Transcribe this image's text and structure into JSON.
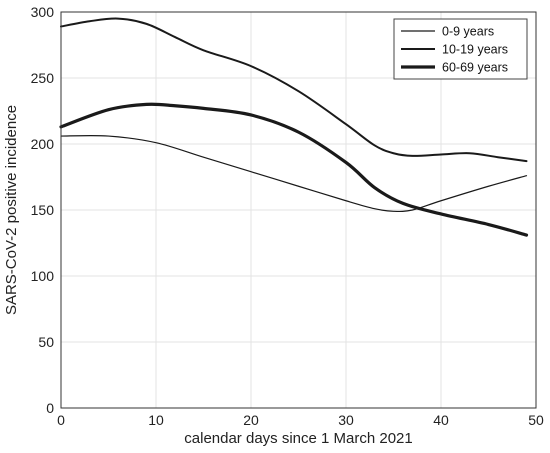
{
  "chart_data": {
    "type": "line",
    "xlabel": "calendar days since 1 March 2021",
    "ylabel": "SARS-CoV-2 positive incidence",
    "xlim": [
      0,
      50
    ],
    "ylim": [
      0,
      300
    ],
    "xticks": [
      0,
      10,
      20,
      30,
      40,
      50
    ],
    "yticks": [
      0,
      50,
      100,
      150,
      200,
      250,
      300
    ],
    "grid": true,
    "legend_position": "top-right",
    "series": [
      {
        "name": "0-9 years",
        "line_weight": "thin",
        "color": "#1a1a1a",
        "x": [
          0,
          5,
          10,
          15,
          20,
          25,
          30,
          33,
          35,
          37,
          40,
          45,
          49
        ],
        "y": [
          206,
          206,
          201,
          190,
          179,
          168,
          157,
          151,
          149,
          150,
          157,
          168,
          176
        ]
      },
      {
        "name": "10-19 years",
        "line_weight": "medium",
        "color": "#1a1a1a",
        "x": [
          0,
          3,
          6,
          9,
          12,
          15,
          20,
          25,
          30,
          33,
          35,
          37,
          40,
          43,
          46,
          49
        ],
        "y": [
          289,
          293,
          295,
          291,
          281,
          271,
          259,
          240,
          215,
          199,
          193,
          191,
          192,
          193,
          190,
          187
        ]
      },
      {
        "name": "60-69 years",
        "line_weight": "thick",
        "color": "#1a1a1a",
        "x": [
          0,
          5,
          9,
          12,
          15,
          20,
          25,
          30,
          33,
          36,
          40,
          45,
          49
        ],
        "y": [
          213,
          226,
          230,
          229,
          227,
          222,
          209,
          186,
          167,
          155,
          147,
          139,
          131
        ]
      }
    ]
  }
}
